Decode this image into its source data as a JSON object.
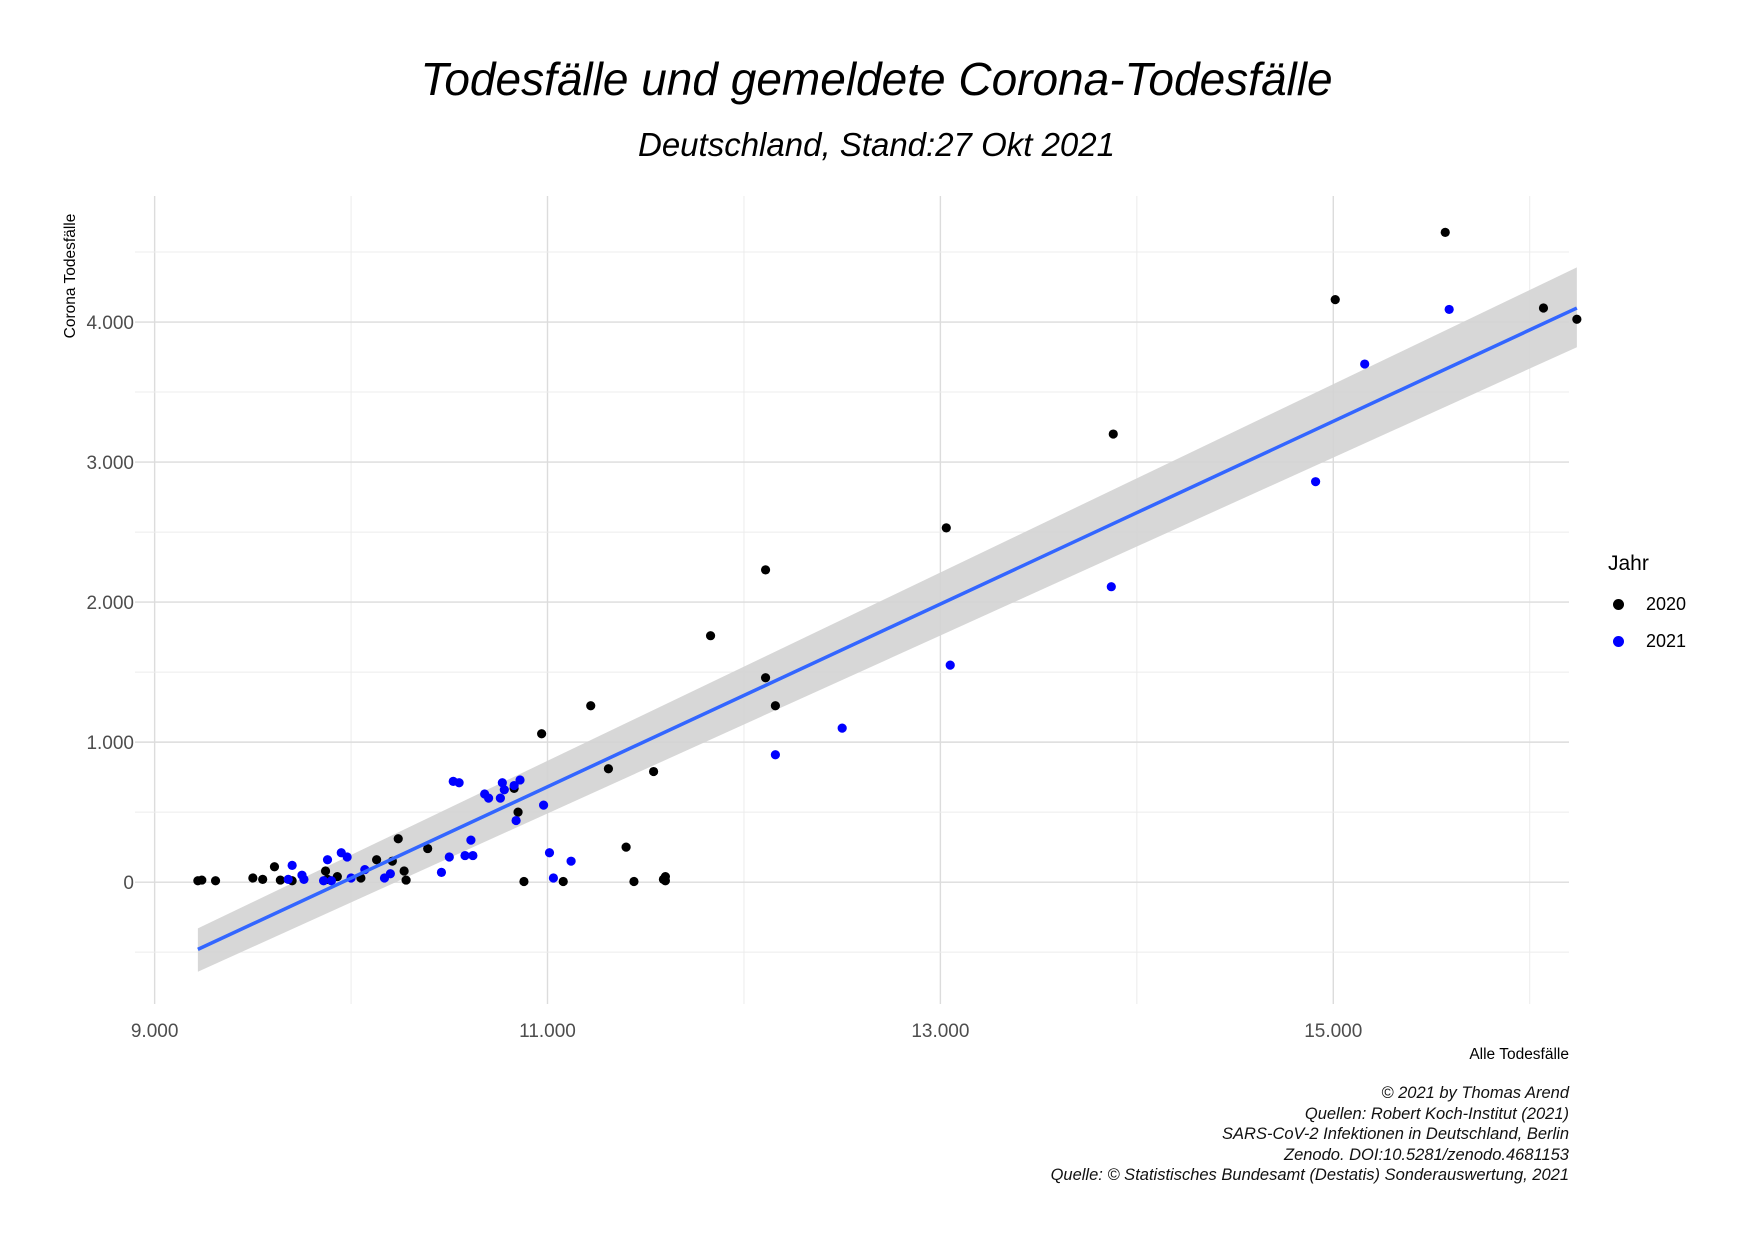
{
  "title": "Todesfälle und gemeldete Corona-Todesfälle",
  "subtitle": "Deutschland, Stand:27 Okt 2021",
  "legend": {
    "title": "Jahr",
    "items": [
      {
        "label": "2020",
        "color": "#000000"
      },
      {
        "label": "2021",
        "color": "#0000ff"
      }
    ]
  },
  "caption": [
    "© 2021 by Thomas Arend",
    "Quellen: Robert Koch-Institut (2021)",
    "SARS-CoV-2 Infektionen in Deutschland, Berlin",
    "Zenodo. DOI:10.5281/zenodo.4681153",
    "Quelle: © Statistisches Bundesamt (Destatis) Sonderauswertung, 2021"
  ],
  "chart_data": {
    "type": "scatter",
    "xlabel": "Alle Todesfälle",
    "ylabel": "Corona Todesfälle",
    "xlim": [
      8900,
      16200
    ],
    "ylim": [
      -870,
      4900
    ],
    "x_ticks": [
      9000,
      11000,
      13000,
      15000
    ],
    "x_tick_labels": [
      "9.000",
      "11.000",
      "13.000",
      "15.000"
    ],
    "y_ticks": [
      0,
      1000,
      2000,
      3000,
      4000
    ],
    "y_tick_labels": [
      "0",
      "1.000",
      "2.000",
      "3.000",
      "4.000"
    ],
    "grid": true,
    "legend_position": "right",
    "series": [
      {
        "name": "2020",
        "color": "#000000",
        "points": [
          [
            9220,
            10
          ],
          [
            9240,
            15
          ],
          [
            9310,
            10
          ],
          [
            9500,
            30
          ],
          [
            9550,
            20
          ],
          [
            9610,
            110
          ],
          [
            9640,
            15
          ],
          [
            9700,
            10
          ],
          [
            9870,
            80
          ],
          [
            9880,
            20
          ],
          [
            9930,
            40
          ],
          [
            10050,
            30
          ],
          [
            10130,
            160
          ],
          [
            10210,
            150
          ],
          [
            10240,
            310
          ],
          [
            10270,
            80
          ],
          [
            10280,
            15
          ],
          [
            10390,
            240
          ],
          [
            10830,
            670
          ],
          [
            10850,
            500
          ],
          [
            10880,
            5
          ],
          [
            10970,
            1060
          ],
          [
            11080,
            5
          ],
          [
            11220,
            1260
          ],
          [
            11310,
            810
          ],
          [
            11400,
            250
          ],
          [
            11440,
            5
          ],
          [
            11540,
            790
          ],
          [
            11590,
            20
          ],
          [
            11600,
            40
          ],
          [
            11600,
            10
          ],
          [
            11830,
            1760
          ],
          [
            12110,
            2230
          ],
          [
            12110,
            1460
          ],
          [
            12160,
            1260
          ],
          [
            13030,
            2530
          ],
          [
            13880,
            3200
          ],
          [
            15010,
            4160
          ],
          [
            15570,
            4640
          ],
          [
            16070,
            4100
          ],
          [
            16240,
            4020
          ]
        ]
      },
      {
        "name": "2021",
        "color": "#0000ff",
        "points": [
          [
            9680,
            20
          ],
          [
            9700,
            120
          ],
          [
            9750,
            50
          ],
          [
            9760,
            20
          ],
          [
            9860,
            10
          ],
          [
            9880,
            160
          ],
          [
            9900,
            10
          ],
          [
            9950,
            210
          ],
          [
            9980,
            180
          ],
          [
            10000,
            30
          ],
          [
            10070,
            90
          ],
          [
            10170,
            30
          ],
          [
            10200,
            60
          ],
          [
            10460,
            70
          ],
          [
            10500,
            180
          ],
          [
            10520,
            720
          ],
          [
            10550,
            710
          ],
          [
            10580,
            190
          ],
          [
            10610,
            300
          ],
          [
            10620,
            190
          ],
          [
            10680,
            630
          ],
          [
            10700,
            600
          ],
          [
            10760,
            600
          ],
          [
            10770,
            710
          ],
          [
            10780,
            660
          ],
          [
            10830,
            690
          ],
          [
            10840,
            440
          ],
          [
            10860,
            730
          ],
          [
            10980,
            550
          ],
          [
            11010,
            210
          ],
          [
            11030,
            30
          ],
          [
            11120,
            150
          ],
          [
            12160,
            910
          ],
          [
            12500,
            1100
          ],
          [
            13050,
            1550
          ],
          [
            13870,
            2110
          ],
          [
            14910,
            2860
          ],
          [
            15160,
            3700
          ],
          [
            15590,
            4090
          ]
        ]
      }
    ],
    "trend_line": {
      "method": "linear",
      "color": "#3366ff",
      "from": [
        9220,
        -480
      ],
      "to": [
        16240,
        4100
      ]
    },
    "confidence_band": {
      "color": "#d3d3d3",
      "x": [
        9220,
        16240
      ],
      "lower": [
        -640,
        3820
      ],
      "upper": [
        -330,
        4390
      ]
    }
  }
}
